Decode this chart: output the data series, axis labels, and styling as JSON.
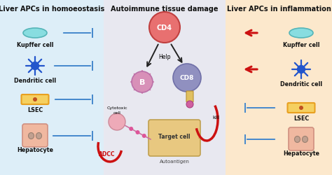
{
  "title_left": "Liver APCs in homoeostasis",
  "title_center": "Autoimmune tissue damage",
  "title_right": "Liver APCs in inflammation",
  "bg_left": "#ddeef8",
  "bg_center": "#e8e8f0",
  "bg_right": "#fce8cc",
  "cell_labels_left": [
    "Kupffer cell",
    "Dendritic cell",
    "LSEC",
    "Hepatocyte"
  ],
  "cell_labels_right": [
    "Kupffer cell",
    "Dendritic cell",
    "LSEC",
    "Hepatocyte"
  ],
  "kupffer_fill": "#88dde0",
  "kupffer_edge": "#55b5b8",
  "dendritic_color": "#2255cc",
  "lsec_outline": "#e8a020",
  "lsec_fill": "#f5d060",
  "lsec_dot": "#c05020",
  "hepatocyte_fill": "#f0b8a0",
  "hepatocyte_edge": "#d09080",
  "hepatocyte_nucleus": "#c0a090",
  "cd4_fill": "#e87070",
  "cd4_edge": "#c04040",
  "b_fill": "#d890b8",
  "b_spike": "#cc7aaa",
  "cd8_fill": "#9090c0",
  "cd8_edge": "#7070a8",
  "target_fill": "#e8c880",
  "target_edge": "#c0a050",
  "cytotoxic_fill": "#eeaab8",
  "cytotoxic_spike": "#dd9aaa",
  "arrow_red": "#cc1111",
  "arrow_black": "#222222",
  "inhibit_color": "#4488cc",
  "text_color": "#111111",
  "font_size_title": 7.0,
  "font_size_label": 5.8,
  "panel_div1": 148,
  "panel_div2": 322,
  "fig_w": 4.74,
  "fig_h": 2.51,
  "dpi": 100
}
